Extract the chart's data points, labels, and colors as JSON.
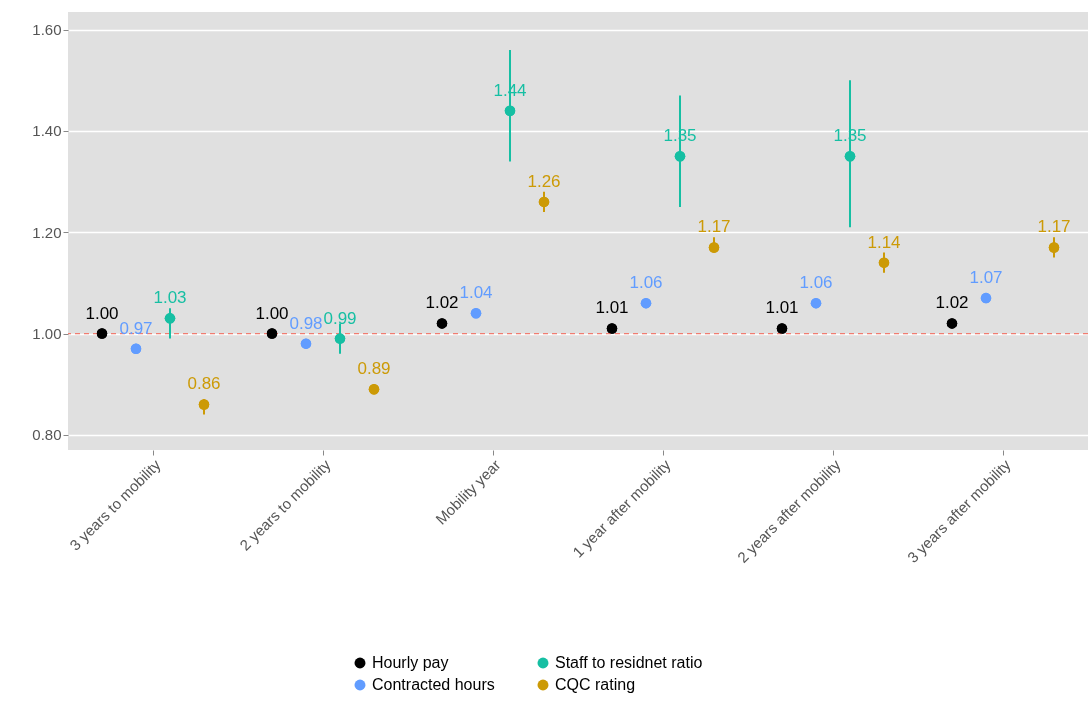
{
  "chart_data": {
    "type": "scatter",
    "categories": [
      "3 years to mobility",
      "2 years to mobility",
      "Mobility year",
      "1 year after mobility",
      "2 years after mobility",
      "3 years after mobility"
    ],
    "series": [
      {
        "name": "Hourly pay",
        "color": "#000000",
        "values": [
          1.0,
          1.0,
          1.02,
          1.01,
          1.01,
          1.02
        ],
        "value_labels": [
          "1.00",
          "1.00",
          "1.02",
          "1.01",
          "1.01",
          "1.02"
        ]
      },
      {
        "name": "Contracted hours",
        "color": "#619cff",
        "values": [
          0.97,
          0.98,
          1.04,
          1.06,
          1.06,
          1.07
        ],
        "value_labels": [
          "0.97",
          "0.98",
          "1.04",
          "1.06",
          "1.06",
          "1.07"
        ]
      },
      {
        "name": "Staff to residnet ratio",
        "color": "#16bfa3",
        "values": [
          1.03,
          0.99,
          1.44,
          1.35,
          1.35,
          null
        ],
        "value_labels": [
          "1.03",
          "0.99",
          "1.44",
          "1.35",
          "1.35",
          null
        ],
        "errors": [
          [
            0.99,
            1.05
          ],
          [
            0.96,
            1.02
          ],
          [
            1.34,
            1.56
          ],
          [
            1.25,
            1.47
          ],
          [
            1.21,
            1.5
          ],
          null
        ]
      },
      {
        "name": "CQC rating",
        "color": "#cc9a06",
        "values": [
          0.86,
          0.89,
          1.26,
          1.17,
          1.14,
          1.17
        ],
        "value_labels": [
          "0.86",
          "0.89",
          "1.26",
          "1.17",
          "1.14",
          "1.17"
        ],
        "errors": [
          [
            0.84,
            0.87
          ],
          [
            0.88,
            0.9
          ],
          [
            1.24,
            1.28
          ],
          [
            1.16,
            1.19
          ],
          [
            1.12,
            1.16
          ],
          [
            1.15,
            1.19
          ]
        ]
      }
    ],
    "ylim": [
      0.77,
      1.635
    ],
    "yticks": [
      {
        "value": 0.8,
        "label": "0.80"
      },
      {
        "value": 1.0,
        "label": "1.00"
      },
      {
        "value": 1.2,
        "label": "1.20"
      },
      {
        "value": 1.4,
        "label": "1.40"
      },
      {
        "value": 1.6,
        "label": "1.60"
      }
    ],
    "grid": "y",
    "legend": "bottom",
    "marker": "circle",
    "ref_lines": [
      {
        "axis": "y",
        "value": 1,
        "color": "#f07c70",
        "line_style": "dashed"
      }
    ]
  }
}
